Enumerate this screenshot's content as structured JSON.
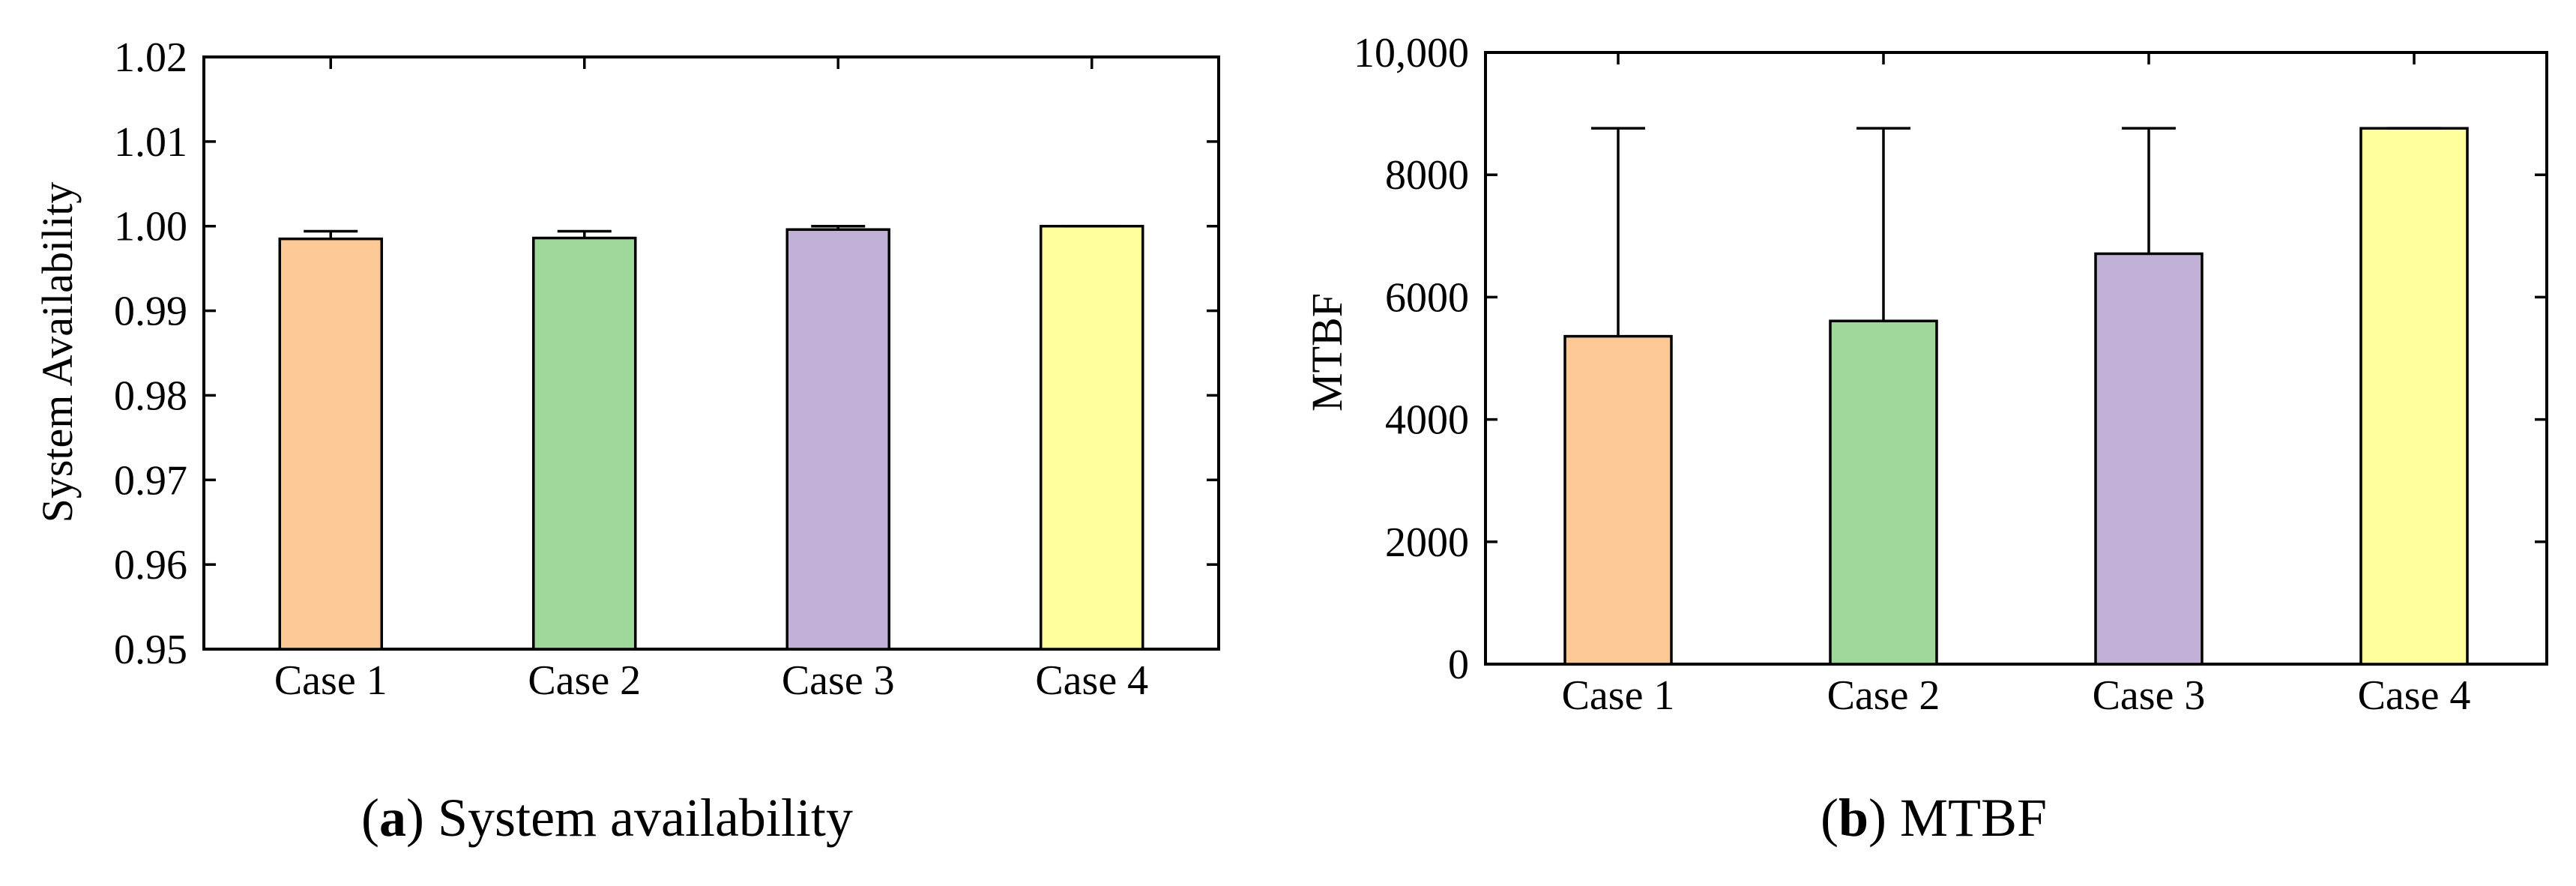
{
  "chart_data": [
    {
      "type": "bar",
      "title": "",
      "xlabel": "",
      "ylabel": "System Availability",
      "categories": [
        "Case 1",
        "Case 2",
        "Case 3",
        "Case 4"
      ],
      "values": [
        0.9985,
        0.9986,
        0.9996,
        1.0
      ],
      "error_upper": [
        0.9994,
        0.9994,
        1.0,
        1.0
      ],
      "colors": [
        "#FBC896",
        "#9ED89B",
        "#C1B1D7",
        "#FFFF9C"
      ],
      "ylim": [
        0.95,
        1.02
      ],
      "yticks": [
        0.95,
        0.96,
        0.97,
        0.98,
        0.99,
        1.0,
        1.01,
        1.02
      ],
      "ytick_labels": [
        "0.95",
        "0.96",
        "0.97",
        "0.98",
        "0.99",
        "1.00",
        "1.01",
        "1.02"
      ],
      "grid": false,
      "caption_letter": "a",
      "caption_text": "System availability"
    },
    {
      "type": "bar",
      "title": "",
      "xlabel": "",
      "ylabel": "MTBF",
      "categories": [
        "Case 1",
        "Case 2",
        "Case 3",
        "Case 4"
      ],
      "values": [
        5360,
        5610,
        6710,
        8760
      ],
      "error_upper": [
        8760,
        8760,
        8760,
        8760
      ],
      "colors": [
        "#FBC896",
        "#9ED89B",
        "#C1B1D7",
        "#FFFF9C"
      ],
      "ylim": [
        0,
        10000
      ],
      "yticks": [
        0,
        2000,
        4000,
        6000,
        8000,
        10000
      ],
      "ytick_labels": [
        "0",
        "2000",
        "4000",
        "6000",
        "8000",
        "10,000"
      ],
      "grid": false,
      "caption_letter": "b",
      "caption_text": "MTBF"
    }
  ]
}
